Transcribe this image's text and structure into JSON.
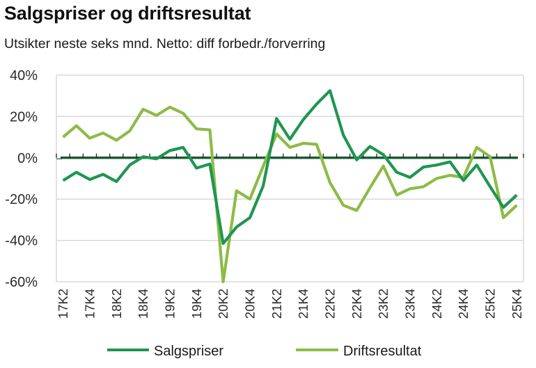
{
  "chart_data": {
    "type": "line",
    "title": "Salgspriser og driftsresultat",
    "subtitle": "Utsikter neste seks mnd. Netto: diff forbedr./forverring",
    "xlabel": "",
    "ylabel": "",
    "ylim": [
      -60,
      40
    ],
    "yticks": [
      40,
      20,
      0,
      -20,
      -40,
      -60
    ],
    "ytick_labels": [
      "40%",
      "20%",
      "0%",
      "-20%",
      "-40%",
      "-60%"
    ],
    "grid": true,
    "legend_position": "bottom",
    "x": [
      "17K2",
      "17K3",
      "17K4",
      "18K1",
      "18K2",
      "18K3",
      "18K4",
      "19K1",
      "19K2",
      "19K3",
      "19K4",
      "20K1",
      "20K2",
      "20K3",
      "20K4",
      "21K1",
      "21K2",
      "21K3",
      "21K4",
      "22K1",
      "22K2",
      "22K3",
      "22K4",
      "23K1",
      "23K2",
      "23K3",
      "23K4",
      "24K1",
      "24K2",
      "24K3",
      "24K4",
      "25K1",
      "25K2",
      "25K3",
      "25K4"
    ],
    "xtick_labels": [
      "17K2",
      "17K4",
      "18K2",
      "18K4",
      "19K2",
      "19K4",
      "20K2",
      "20K4",
      "21K2",
      "21K4",
      "22K2",
      "22K4",
      "23K2",
      "23K4",
      "24K2",
      "24K4",
      "25K2",
      "25K4"
    ],
    "series": [
      {
        "name": "Salgspriser",
        "color": "#1e9650",
        "values": [
          -11,
          -7,
          -10.5,
          -8,
          -11.5,
          -3.5,
          0.5,
          -0.5,
          3.5,
          5,
          -5,
          -3,
          -41.5,
          -33.5,
          -29,
          -13.5,
          19,
          9,
          18.5,
          26,
          32.5,
          11,
          -1,
          5.5,
          1.5,
          -7,
          -9.5,
          -4.5,
          -3.5,
          -2,
          -11,
          -3.5,
          -14,
          -24,
          -18
        ]
      },
      {
        "name": "Driftsresultat",
        "color": "#8dbb47",
        "values": [
          10,
          15.5,
          9.5,
          12,
          8.5,
          13,
          23.5,
          20.5,
          24.5,
          21.5,
          14,
          13.5,
          -60,
          -16,
          -20,
          -4,
          11.5,
          5,
          7,
          6.5,
          -12,
          -23,
          -25.5,
          -14.5,
          -4,
          -18,
          -15,
          -14,
          -10,
          -8.5,
          -9.5,
          5,
          0.5,
          -29,
          -23
        ]
      }
    ],
    "zero_line_color": "#1c5a36"
  }
}
